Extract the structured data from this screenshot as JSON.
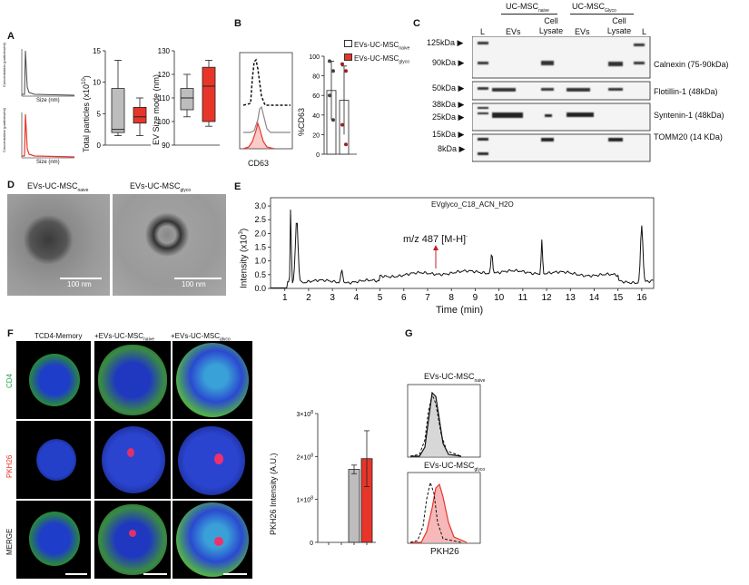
{
  "panels": {
    "A": "A",
    "B": "B",
    "C": "C",
    "D": "D",
    "E": "E",
    "F": "F",
    "G": "G"
  },
  "panelA": {
    "mini_ylabel": "Concentration (particles/ml)",
    "mini_xlabel": "Size (nm)",
    "total_particles": {
      "ylabel_main": "Total particles (x10",
      "ylabel_exp": "10",
      "ylabel_end": ")",
      "ticks": [
        "15",
        "10",
        "5",
        "0"
      ],
      "ylim": [
        0,
        15
      ],
      "boxes": [
        {
          "group": "naive",
          "color": "#bdbdbd",
          "min": 1.5,
          "q1": 2.0,
          "median": 2.5,
          "q3": 9.0,
          "max": 13.5
        },
        {
          "group": "glyco",
          "color": "#e8352a",
          "min": 1.5,
          "q1": 3.5,
          "median": 4.5,
          "q3": 6.0,
          "max": 7.5
        }
      ]
    },
    "ev_size": {
      "ylabel": "EV Size mode (nm)",
      "ticks": [
        "130",
        "120",
        "110",
        "100",
        "90"
      ],
      "ylim": [
        90,
        130
      ],
      "boxes": [
        {
          "group": "naive",
          "color": "#bdbdbd",
          "min": 102,
          "q1": 105,
          "median": 110,
          "q3": 114,
          "max": 120
        },
        {
          "group": "glyco",
          "color": "#e8352a",
          "min": 98,
          "q1": 100,
          "median": 115,
          "q3": 123,
          "max": 126
        }
      ]
    }
  },
  "panelB": {
    "xlabel": "CD63",
    "ylabel": "%CD63",
    "ticks": [
      "100",
      "80",
      "60",
      "40",
      "20",
      "0"
    ],
    "legend": [
      {
        "label": "EVs-UC-MSC",
        "sub": "naive",
        "color": "#ffffff"
      },
      {
        "label": "EVs-UC-MSC",
        "sub": "glyco",
        "color": "#e8352a"
      }
    ],
    "bars": [
      {
        "group": "naive",
        "value": 65,
        "err": 30,
        "color": "#ffffff",
        "points": [
          95,
          85,
          60,
          35
        ]
      },
      {
        "group": "glyco",
        "value": 55,
        "err": 35,
        "color": "#ffffff",
        "points": [
          92,
          85,
          30,
          10
        ]
      }
    ]
  },
  "panelC": {
    "header_naive": "UC-MSC",
    "header_naive_sub": "naive",
    "header_glyco": "UC-MSC",
    "header_glyco_sub": "Glyco",
    "lanes": [
      "L",
      "EVs",
      "Cell Lysate",
      "EVs",
      "Cell Lysate",
      "L"
    ],
    "blots": [
      {
        "markers": [
          "125kDa",
          "90kDa"
        ],
        "label": "Calnexin (75-90kDa)"
      },
      {
        "markers": [
          "50kDa"
        ],
        "label": "Flotillin-1 (48kDa)"
      },
      {
        "markers": [
          "38kDa",
          "25kDa"
        ],
        "label": "Syntenin-1 (48kDa)"
      },
      {
        "markers": [
          "15kDa",
          "8kDa"
        ],
        "label": "TOMM20 (14 KDa)"
      }
    ]
  },
  "panelD": {
    "title_naive": "EVs-UC-MSC",
    "title_naive_sub": "naive",
    "title_glyco": "EVs-UC-MSC",
    "title_glyco_sub": "glyco",
    "scale": "100 nm"
  },
  "panelE": {
    "title": "EVglyco_C18_ACN_H2O",
    "annotation": "m/z 487 [M-H]",
    "annotation_sup": "-",
    "ylabel": "Intensity (x10",
    "ylabel_exp": "3",
    "ylabel_end": ")",
    "xlabel": "Time (min)",
    "yticks": [
      "3.0",
      "2.5",
      "2.0",
      "1.5",
      "1.0",
      "0.5",
      "0.0"
    ],
    "xticks": [
      "1",
      "2",
      "3",
      "4",
      "5",
      "6",
      "7",
      "8",
      "9",
      "10",
      "11",
      "12",
      "13",
      "14",
      "15",
      "16"
    ]
  },
  "panelF": {
    "col_headers": [
      "TCD4-Memory",
      "+EVs-UC-MSC",
      "+EVs-UC-MSC"
    ],
    "col_subs": [
      "",
      "naive",
      "glyco"
    ],
    "row_labels": [
      "CD4",
      "PKH26",
      "MERGE"
    ],
    "row_colors": [
      "#22a34a",
      "#e8352a",
      "#111111"
    ],
    "bar": {
      "ylabel": "PKH26 Intensity (A.U.)",
      "ticks": [
        "3×10",
        "2×10",
        "1×10",
        "0"
      ],
      "tick_exps": [
        "8",
        "8",
        "8",
        ""
      ],
      "values": [
        {
          "group": "naive",
          "value": 170000000.0,
          "err": 10000000.0,
          "color": "#bdbdbd"
        },
        {
          "group": "glyco",
          "value": 195000000.0,
          "err": 65000000.0,
          "color": "#e8352a"
        }
      ]
    }
  },
  "panelG": {
    "title_naive": "EVs-UC-MSC",
    "title_naive_sub": "naive",
    "title_glyco": "EVs-UC-MSC",
    "title_glyco_sub": "glyco",
    "xlabel": "PKH26"
  }
}
